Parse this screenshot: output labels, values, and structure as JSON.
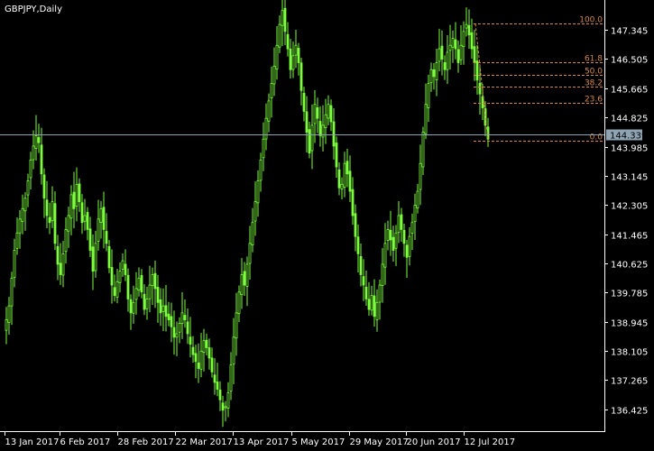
{
  "chart_data": {
    "type": "candlestick",
    "title": "GBPJPY,Daily",
    "colors": {
      "background": "#000000",
      "candle": "#7cff3c",
      "axis": "#ffffff",
      "fib": "#d2894a",
      "current_line": "#8fa4b2",
      "price_box": "#8fa4b2"
    },
    "ylim": [
      135.9,
      148.1
    ],
    "y_ticks": [
      "147.345",
      "146.505",
      "145.665",
      "144.825",
      "143.985",
      "143.145",
      "142.305",
      "141.465",
      "140.625",
      "139.785",
      "138.945",
      "138.105",
      "137.265",
      "136.425"
    ],
    "x_ticks": [
      "13 Jan 2017",
      "6 Feb 2017",
      "28 Feb 2017",
      "22 Mar 2017",
      "13 Apr 2017",
      "5 May 2017",
      "29 May 2017",
      "20 Jun 2017",
      "12 Jul 2017"
    ],
    "current_price": "144.339",
    "fib_levels": [
      {
        "label": "100.0",
        "price": 147.52
      },
      {
        "label": "61.8",
        "price": 146.41
      },
      {
        "label": "50.0",
        "price": 146.04
      },
      {
        "label": "38.2",
        "price": 145.7
      },
      {
        "label": "23.6",
        "price": 145.25
      },
      {
        "label": "0.0",
        "price": 144.16
      }
    ],
    "closes": [
      139.0,
      139.4,
      140.2,
      141.0,
      141.5,
      141.9,
      142.2,
      142.5,
      143.0,
      143.6,
      144.0,
      144.3,
      144.1,
      143.2,
      142.5,
      142.0,
      141.8,
      142.4,
      141.2,
      140.6,
      140.3,
      140.9,
      141.6,
      142.0,
      142.6,
      142.2,
      142.9,
      142.4,
      141.8,
      142.0,
      141.6,
      141.0,
      140.4,
      141.2,
      141.9,
      142.2,
      141.6,
      141.2,
      140.5,
      140.0,
      139.7,
      140.1,
      140.4,
      140.7,
      140.3,
      139.6,
      139.2,
      139.5,
      139.9,
      140.2,
      139.8,
      139.3,
      139.6,
      140.0,
      140.3,
      139.9,
      139.5,
      139.2,
      139.4,
      139.1,
      139.0,
      138.8,
      138.5,
      138.6,
      138.9,
      139.2,
      139.0,
      138.6,
      138.3,
      138.0,
      137.8,
      137.6,
      138.1,
      138.4,
      138.2,
      137.9,
      137.5,
      137.2,
      137.0,
      136.7,
      136.4,
      136.5,
      136.9,
      137.7,
      138.5,
      139.2,
      139.8,
      140.3,
      140.0,
      140.6,
      141.2,
      141.8,
      142.4,
      143.0,
      143.6,
      144.2,
      144.8,
      145.3,
      145.8,
      146.3,
      146.9,
      147.5,
      147.9,
      147.3,
      146.8,
      146.2,
      146.6,
      146.9,
      146.4,
      145.6,
      145.0,
      144.4,
      143.8,
      144.6,
      145.2,
      144.8,
      144.3,
      144.6,
      144.9,
      145.2,
      144.7,
      144.0,
      143.4,
      142.8,
      142.9,
      143.5,
      143.2,
      142.7,
      142.0,
      141.4,
      140.9,
      140.3,
      140.0,
      139.6,
      139.3,
      139.7,
      139.1,
      139.5,
      140.0,
      140.6,
      141.2,
      141.6,
      141.3,
      141.0,
      141.5,
      142.0,
      141.6,
      141.2,
      140.8,
      141.4,
      141.8,
      142.3,
      142.7,
      143.5,
      144.4,
      145.2,
      145.8,
      146.2,
      146.0,
      146.4,
      146.8,
      146.5,
      146.2,
      146.7,
      146.9,
      147.1,
      146.8,
      146.4,
      146.9,
      147.3,
      147.5,
      147.2,
      146.8,
      146.4,
      145.9,
      145.5,
      145.1,
      144.6,
      144.2
    ]
  }
}
